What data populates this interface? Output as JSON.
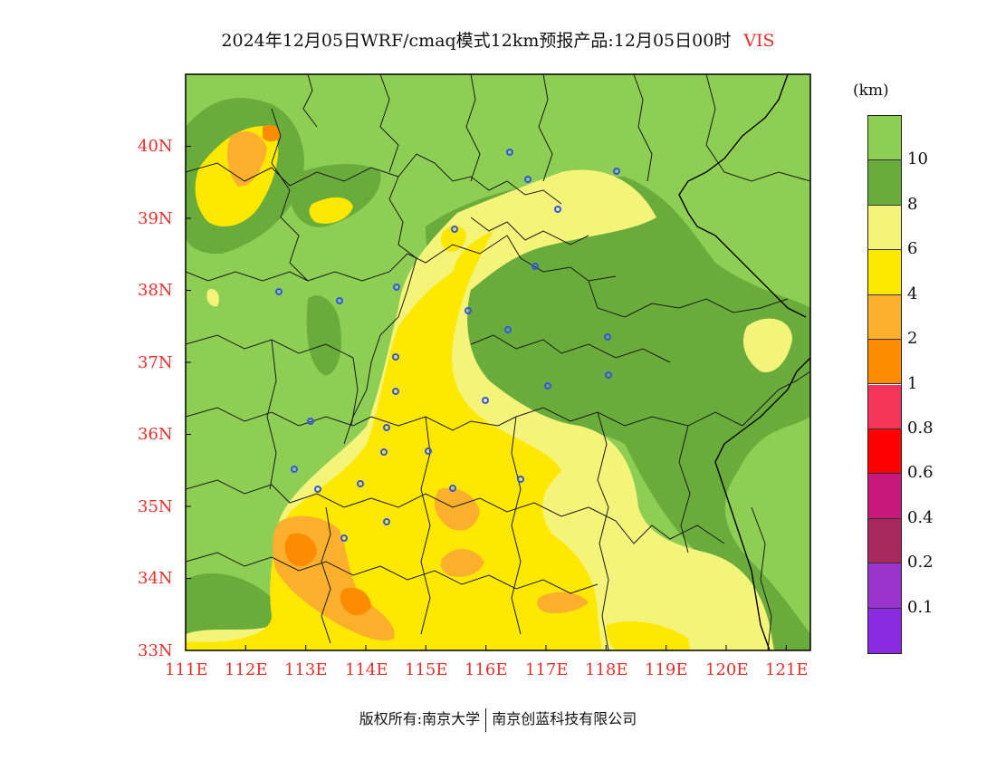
{
  "title": {
    "main": "2024年12月05日WRF/cmaq模式12km预报产品:12月05日00时",
    "variable": "VIS"
  },
  "colors": {
    "tick_label": "#e2312d",
    "frame": "#000000",
    "city_marker": "#3355ee",
    "boundary": "#1a1a1a"
  },
  "axes": {
    "lon_ticks": [
      "111E",
      "112E",
      "113E",
      "114E",
      "115E",
      "116E",
      "117E",
      "118E",
      "119E",
      "120E",
      "121E"
    ],
    "lat_ticks": [
      "33N",
      "34N",
      "35N",
      "36N",
      "37N",
      "38N",
      "39N",
      "40N"
    ],
    "lon_range": [
      111,
      121.4
    ],
    "lat_range": [
      33,
      41
    ]
  },
  "legend": {
    "unit": "(km)",
    "labels": [
      "10",
      "8",
      "6",
      "4",
      "2",
      "1",
      "0.8",
      "0.6",
      "0.4",
      "0.2",
      "0.1"
    ],
    "colors": [
      "#8fce55",
      "#6aac3c",
      "#f4f47a",
      "#ffe800",
      "#fbb02d",
      "#ff8c00",
      "#f5345a",
      "#ff0000",
      "#c8187c",
      "#a6285c",
      "#9933cc",
      "#8a2be2"
    ]
  },
  "copyright": {
    "left": "版权所有:南京大学",
    "right": "南京创蓝科技有限公司"
  }
}
